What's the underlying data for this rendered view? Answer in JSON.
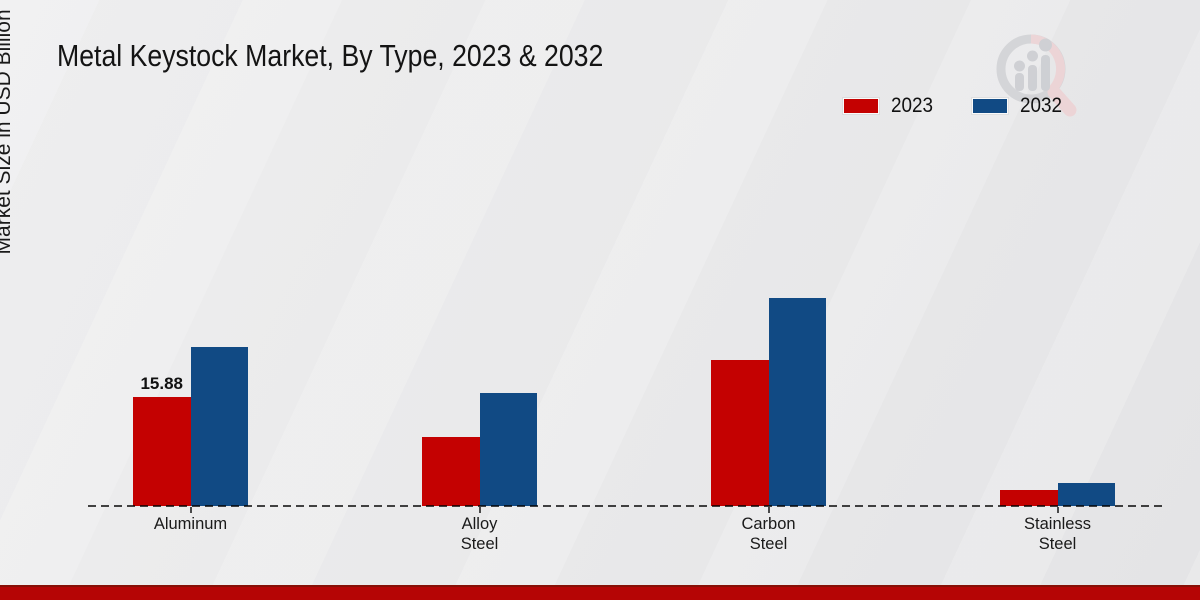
{
  "page": {
    "title": "Metal Keystock Market, By Type, 2023 & 2032"
  },
  "axis": {
    "y_label": "Market Size in USD Billion"
  },
  "legend": {
    "items": [
      {
        "label": "2023",
        "color": "#c40101"
      },
      {
        "label": "2032",
        "color": "#114a84"
      }
    ]
  },
  "watermark": {
    "name": "magnifier-growth-chart-logo"
  },
  "chart_data": {
    "type": "bar",
    "title": "Metal Keystock Market, By Type, 2023 & 2032",
    "xlabel": "",
    "ylabel": "Market Size in USD Billion",
    "categories": [
      "Aluminum",
      "Alloy Steel",
      "Carbon Steel",
      "Stainless Steel"
    ],
    "series": [
      {
        "name": "2023",
        "color": "#c40101",
        "values": [
          15.88,
          10.05,
          21.3,
          2.35
        ]
      },
      {
        "name": "2032",
        "color": "#114a84",
        "values": [
          23.2,
          16.5,
          30.3,
          3.4
        ]
      }
    ],
    "ylim": [
      0,
      35
    ],
    "grid": false,
    "baseline": "dashed",
    "legend_position": "top-right",
    "annotations": [
      {
        "series": "2023",
        "category": "Aluminum",
        "text": "15.88"
      }
    ]
  }
}
